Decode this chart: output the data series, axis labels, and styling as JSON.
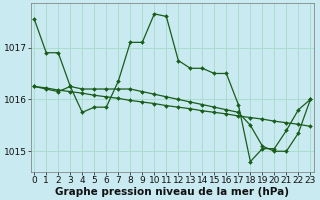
{
  "background_color": "#c8eaf0",
  "grid_color": "#aaddcc",
  "line_color": "#1a5c1a",
  "marker_color": "#1a5c1a",
  "xlabel": "Graphe pression niveau de la mer (hPa)",
  "xlabel_fontsize": 7.5,
  "tick_fontsize": 6.5,
  "ylim": [
    1014.6,
    1017.85
  ],
  "yticks": [
    1015,
    1016,
    1017
  ],
  "xlim": [
    -0.3,
    23.3
  ],
  "xticks": [
    0,
    1,
    2,
    3,
    4,
    5,
    6,
    7,
    8,
    9,
    10,
    11,
    12,
    13,
    14,
    15,
    16,
    17,
    18,
    19,
    20,
    21,
    22,
    23
  ],
  "series": [
    [
      1017.55,
      1016.9,
      1016.9,
      1016.25,
      1015.75,
      1015.85,
      1015.85,
      1016.35,
      1017.1,
      1017.1,
      1017.65,
      1017.6,
      1016.75,
      1016.6,
      1016.6,
      1016.5,
      1016.5,
      1015.9,
      1014.8,
      1015.05,
      1015.05,
      1015.4,
      1015.8,
      1016.0
    ],
    [
      1016.25,
      1016.2,
      1016.15,
      1016.25,
      1016.2,
      1016.2,
      1016.2,
      1016.2,
      1016.2,
      1016.15,
      1016.1,
      1016.05,
      1016.0,
      1015.95,
      1015.9,
      1015.85,
      1015.8,
      1015.75,
      1015.5,
      1015.1,
      1015.0,
      1015.0,
      1015.35,
      1016.0
    ],
    [
      1016.25,
      1016.22,
      1016.18,
      1016.15,
      1016.12,
      1016.08,
      1016.05,
      1016.02,
      1015.98,
      1015.95,
      1015.92,
      1015.88,
      1015.85,
      1015.82,
      1015.78,
      1015.75,
      1015.72,
      1015.68,
      1015.65,
      1015.62,
      1015.58,
      1015.55,
      1015.52,
      1015.48
    ]
  ]
}
